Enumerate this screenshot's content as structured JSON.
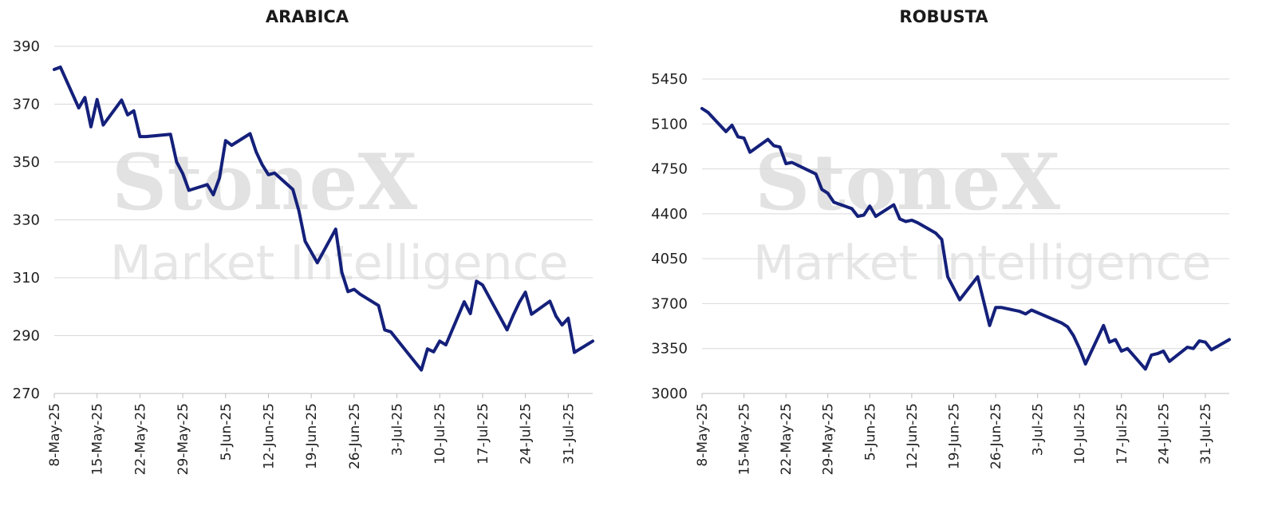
{
  "watermark": {
    "brand": "StoneX",
    "sub": "Market Intelligence"
  },
  "chart_data": [
    {
      "type": "line",
      "title": "ARABICA",
      "xlabel": "",
      "ylabel": "",
      "ylim": [
        270,
        390
      ],
      "yticks": [
        270,
        290,
        310,
        330,
        350,
        370,
        390
      ],
      "xticks": [
        "8-May-25",
        "15-May-25",
        "22-May-25",
        "29-May-25",
        "5-Jun-25",
        "12-Jun-25",
        "19-Jun-25",
        "26-Jun-25",
        "3-Jul-25",
        "10-Jul-25",
        "17-Jul-25",
        "24-Jul-25",
        "31-Jul-25"
      ],
      "grid": true,
      "color": "#14207a",
      "series": [
        {
          "x": [
            "2025-05-08",
            "2025-05-09",
            "2025-05-12",
            "2025-05-13",
            "2025-05-14",
            "2025-05-15",
            "2025-05-16",
            "2025-05-19",
            "2025-05-20",
            "2025-05-21",
            "2025-05-22",
            "2025-05-23",
            "2025-05-27",
            "2025-05-28",
            "2025-05-29",
            "2025-05-30",
            "2025-06-02",
            "2025-06-03",
            "2025-06-04",
            "2025-06-05",
            "2025-06-06",
            "2025-06-09",
            "2025-06-10",
            "2025-06-11",
            "2025-06-12",
            "2025-06-13",
            "2025-06-16",
            "2025-06-17",
            "2025-06-18",
            "2025-06-20",
            "2025-06-23",
            "2025-06-24",
            "2025-06-25",
            "2025-06-26",
            "2025-06-27",
            "2025-06-30",
            "2025-07-01",
            "2025-07-02",
            "2025-07-07",
            "2025-07-08",
            "2025-07-09",
            "2025-07-10",
            "2025-07-11",
            "2025-07-14",
            "2025-07-15",
            "2025-07-16",
            "2025-07-17",
            "2025-07-21",
            "2025-07-22",
            "2025-07-23",
            "2025-07-24",
            "2025-07-25",
            "2025-07-28",
            "2025-07-29",
            "2025-07-30",
            "2025-07-31",
            "2025-08-01",
            "2025-08-04"
          ],
          "values": [
            382.0,
            382.8,
            368.7,
            372.3,
            362.2,
            371.6,
            362.8,
            371.4,
            366.3,
            367.7,
            358.8,
            358.8,
            359.6,
            350.0,
            346.0,
            340.2,
            342.2,
            338.7,
            344.5,
            357.4,
            355.8,
            359.8,
            353.5,
            349.0,
            345.6,
            346.2,
            340.5,
            333.0,
            322.6,
            315.2,
            326.8,
            311.9,
            305.2,
            306.0,
            304.3,
            300.4,
            292.0,
            291.3,
            278.1,
            285.4,
            284.4,
            288.1,
            286.8,
            301.7,
            297.6,
            308.8,
            307.5,
            292.0,
            297.0,
            301.5,
            305.0,
            297.4,
            301.9,
            296.7,
            293.7,
            296.0,
            284.2,
            288.1
          ]
        }
      ]
    },
    {
      "type": "line",
      "title": "ROBUSTA",
      "xlabel": "",
      "ylabel": "",
      "ylim": [
        3000,
        5450
      ],
      "yticks": [
        3000,
        3350,
        3700,
        4050,
        4400,
        4750,
        5100,
        5450
      ],
      "xticks": [
        "8-May-25",
        "15-May-25",
        "22-May-25",
        "29-May-25",
        "5-Jun-25",
        "12-Jun-25",
        "19-Jun-25",
        "26-Jun-25",
        "3-Jul-25",
        "10-Jul-25",
        "17-Jul-25",
        "24-Jul-25",
        "31-Jul-25"
      ],
      "grid": true,
      "color": "#14207a",
      "series": [
        {
          "x": [
            "2025-05-08",
            "2025-05-09",
            "2025-05-12",
            "2025-05-13",
            "2025-05-14",
            "2025-05-15",
            "2025-05-16",
            "2025-05-19",
            "2025-05-20",
            "2025-05-21",
            "2025-05-22",
            "2025-05-23",
            "2025-05-27",
            "2025-05-28",
            "2025-05-29",
            "2025-05-30",
            "2025-06-02",
            "2025-06-03",
            "2025-06-04",
            "2025-06-05",
            "2025-06-06",
            "2025-06-09",
            "2025-06-10",
            "2025-06-11",
            "2025-06-12",
            "2025-06-13",
            "2025-06-16",
            "2025-06-17",
            "2025-06-18",
            "2025-06-20",
            "2025-06-23",
            "2025-06-24",
            "2025-06-25",
            "2025-06-26",
            "2025-06-27",
            "2025-06-30",
            "2025-07-01",
            "2025-07-02",
            "2025-07-07",
            "2025-07-08",
            "2025-07-09",
            "2025-07-10",
            "2025-07-11",
            "2025-07-14",
            "2025-07-15",
            "2025-07-16",
            "2025-07-17",
            "2025-07-18",
            "2025-07-21",
            "2025-07-22",
            "2025-07-23",
            "2025-07-24",
            "2025-07-25",
            "2025-07-28",
            "2025-07-29",
            "2025-07-30",
            "2025-07-31",
            "2025-08-01",
            "2025-08-04"
          ],
          "values": [
            5220,
            5190,
            5040,
            5090,
            5000,
            4990,
            4880,
            4980,
            4930,
            4920,
            4790,
            4800,
            4710,
            4590,
            4560,
            4490,
            4440,
            4380,
            4390,
            4460,
            4380,
            4470,
            4360,
            4340,
            4350,
            4330,
            4250,
            4200,
            3910,
            3730,
            3910,
            3720,
            3530,
            3670,
            3670,
            3640,
            3620,
            3650,
            3550,
            3520,
            3450,
            3350,
            3230,
            3530,
            3400,
            3420,
            3330,
            3350,
            3190,
            3300,
            3310,
            3330,
            3250,
            3360,
            3350,
            3410,
            3400,
            3340,
            3420
          ]
        }
      ]
    }
  ]
}
